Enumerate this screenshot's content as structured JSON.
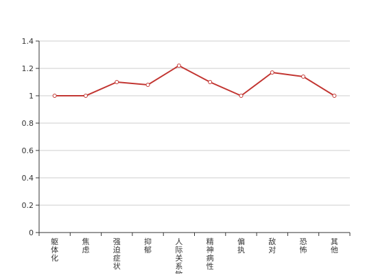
{
  "chart_data": {
    "type": "line",
    "categories": [
      "躯体化",
      "焦虑",
      "强迫症状",
      "抑郁",
      "人际关系敏感",
      "精神病性",
      "偏执",
      "敌对",
      "恐怖",
      "其他"
    ],
    "series": [
      {
        "values": [
          1.0,
          1.0,
          1.1,
          1.08,
          1.22,
          1.1,
          1.0,
          1.17,
          1.14,
          1.0
        ]
      }
    ],
    "ylim": [
      0,
      1.4
    ],
    "yticks": [
      0,
      0.2,
      0.4,
      0.6,
      0.8,
      1,
      1.2,
      1.4
    ],
    "grid": true,
    "legend": "none",
    "colors": {
      "line": "#c23531",
      "grid": "#cccccc",
      "axis": "#333333",
      "marker_fill": "#ffffff"
    }
  }
}
